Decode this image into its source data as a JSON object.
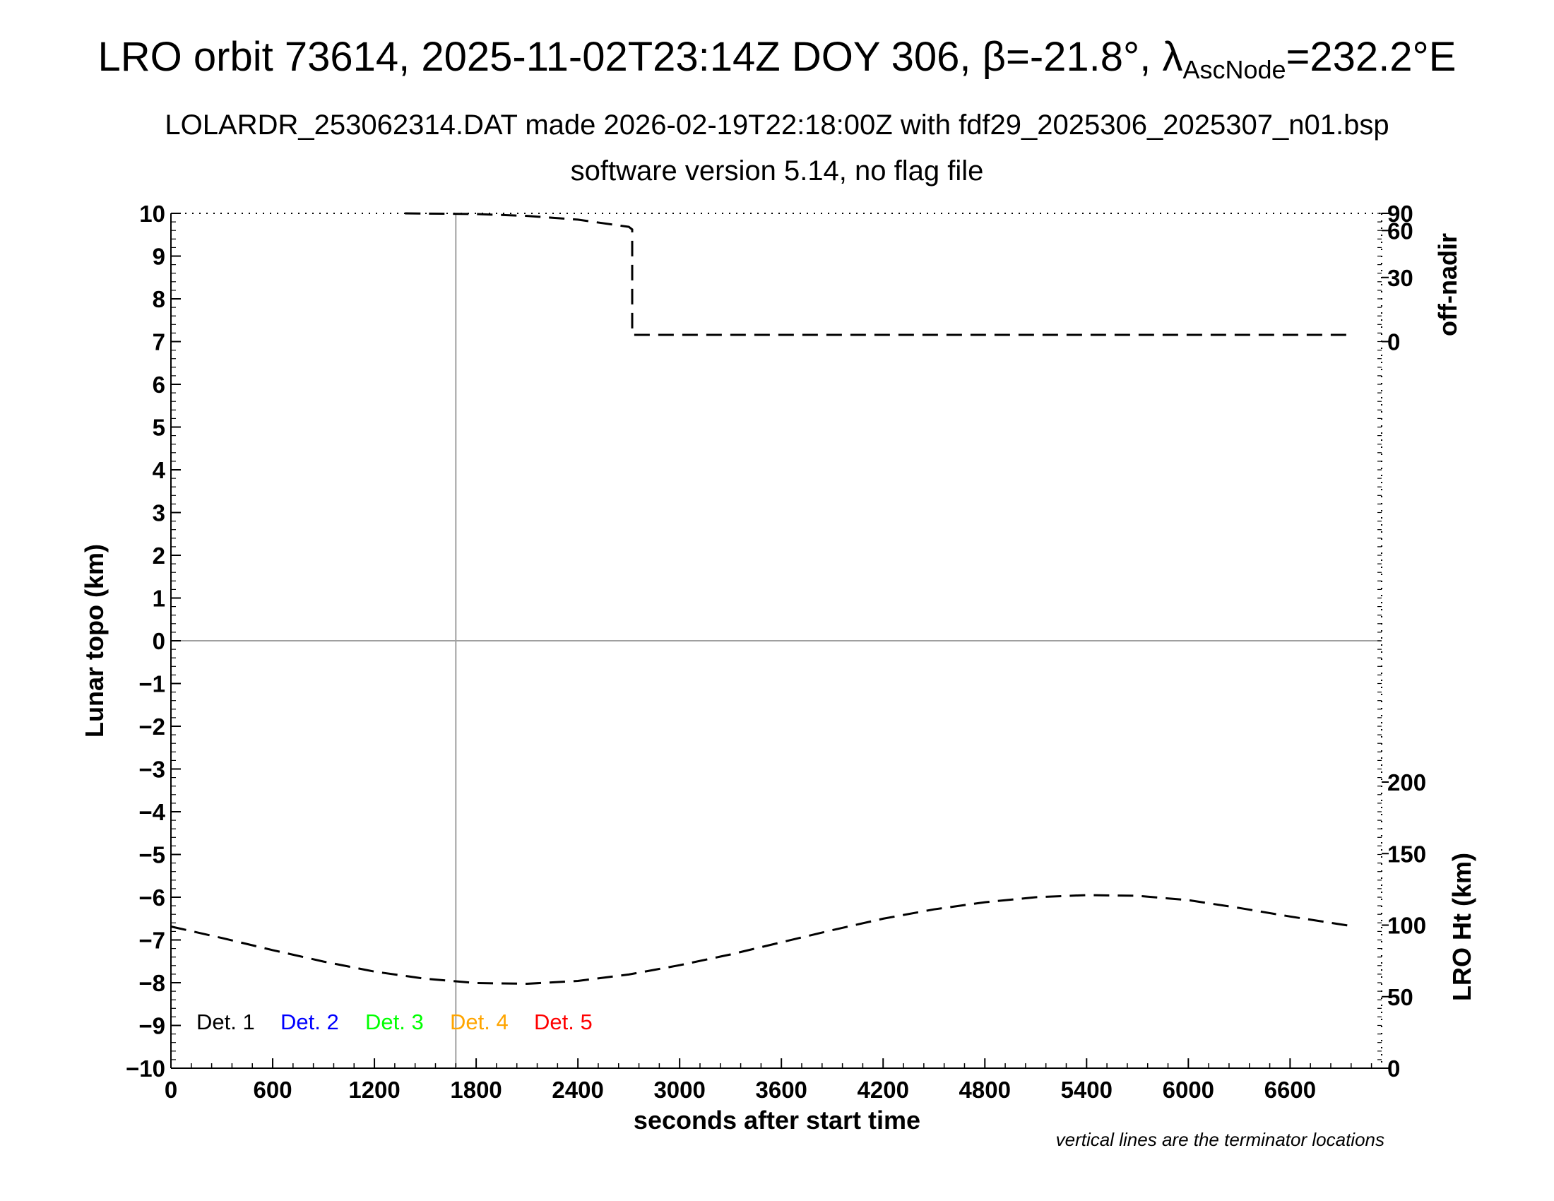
{
  "header": {
    "title_pre": "LRO orbit 73614, 2025-11-02T23:14Z DOY 306, β=-21.8°, λ",
    "title_sub": "AscNode",
    "title_post": "=232.2°E",
    "subtitle1": "LOLARDR_253062314.DAT made 2026-02-19T22:18:00Z with fdf29_2025306_2025307_n01.bsp",
    "subtitle2": "software version 5.14, no flag file"
  },
  "footer": {
    "note": "vertical lines are the terminator locations"
  },
  "chart_data": {
    "type": "line",
    "xlabel": "seconds after start time",
    "ylabel": "Lunar topo (km)",
    "y2_top_label": "off-nadir",
    "y2_bottom_label": "LRO Ht (km)",
    "xlim": [
      0,
      7140
    ],
    "ylim": [
      -10,
      10
    ],
    "x_ticks": [
      "0",
      "600",
      "1200",
      "1800",
      "2400",
      "3000",
      "3600",
      "4200",
      "4800",
      "5400",
      "6000",
      "6600"
    ],
    "y_ticks": [
      "10",
      "9",
      "8",
      "7",
      "6",
      "5",
      "4",
      "3",
      "2",
      "1",
      "0",
      "−1",
      "−2",
      "−3",
      "−4",
      "−5",
      "−6",
      "−7",
      "−8",
      "−9",
      "−10"
    ],
    "offnadir_ticks": [
      "90",
      "60",
      "30",
      "0"
    ],
    "height_ticks": [
      "200",
      "150",
      "100",
      "50",
      "0"
    ],
    "terminator_x": [
      1680
    ],
    "zero_line_y": 0,
    "grid": false,
    "legend": {
      "placement": "bottom-left",
      "entries": [
        {
          "label": "Det. 1",
          "color": "#000000"
        },
        {
          "label": "Det. 2",
          "color": "#0000ff"
        },
        {
          "label": "Det. 3",
          "color": "#00ff00"
        },
        {
          "label": "Det. 4",
          "color": "#ffa500"
        },
        {
          "label": "Det. 5",
          "color": "#ff0000"
        }
      ]
    },
    "series": [
      {
        "axis": "off-nadir",
        "points": [
          [
            1380,
            90
          ],
          [
            1800,
            84
          ],
          [
            2100,
            78.5
          ],
          [
            2400,
            72
          ],
          [
            2700,
            63.5
          ],
          [
            2720,
            61
          ],
          [
            2720,
            3
          ],
          [
            3000,
            3
          ],
          [
            3600,
            3
          ],
          [
            4200,
            3
          ],
          [
            4800,
            3
          ],
          [
            5400,
            3
          ],
          [
            6000,
            3
          ],
          [
            6600,
            3
          ],
          [
            6980,
            3
          ]
        ]
      },
      {
        "axis": "height",
        "points": [
          [
            0,
            99
          ],
          [
            300,
            91
          ],
          [
            600,
            82.5
          ],
          [
            900,
            74.5
          ],
          [
            1200,
            67.5
          ],
          [
            1500,
            62.5
          ],
          [
            1800,
            59.5
          ],
          [
            2100,
            59
          ],
          [
            2400,
            61
          ],
          [
            2700,
            65.5
          ],
          [
            3000,
            72
          ],
          [
            3300,
            79.5
          ],
          [
            3600,
            88
          ],
          [
            3900,
            96.5
          ],
          [
            4200,
            104.5
          ],
          [
            4500,
            111
          ],
          [
            4800,
            116
          ],
          [
            5100,
            119.5
          ],
          [
            5400,
            121
          ],
          [
            5700,
            120.5
          ],
          [
            6000,
            117.5
          ],
          [
            6300,
            112
          ],
          [
            6600,
            106
          ],
          [
            6980,
            99
          ]
        ]
      }
    ]
  }
}
